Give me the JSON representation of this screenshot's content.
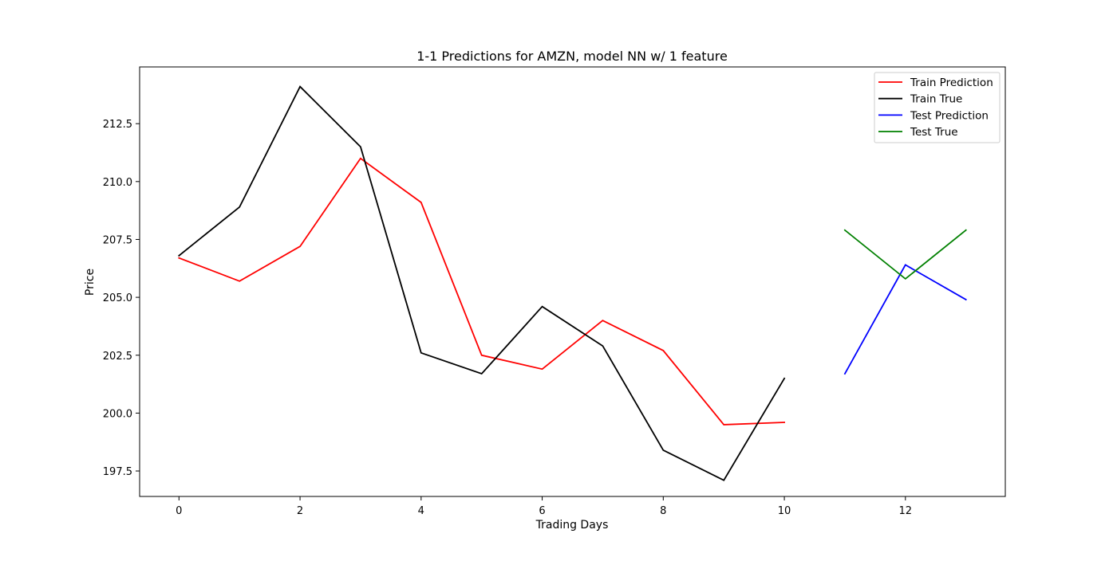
{
  "chart_data": {
    "type": "line",
    "title": "1-1 Predictions for AMZN, model NN w/ 1 feature",
    "xlabel": "Trading Days",
    "ylabel": "Price",
    "xlim": [
      -0.65,
      13.65
    ],
    "ylim": [
      196.4,
      214.95
    ],
    "x_ticks": [
      0,
      2,
      4,
      6,
      8,
      10,
      12
    ],
    "x_tick_labels": [
      "0",
      "2",
      "4",
      "6",
      "8",
      "10",
      "12"
    ],
    "y_ticks": [
      197.5,
      200.0,
      202.5,
      205.0,
      207.5,
      210.0,
      212.5
    ],
    "y_tick_labels": [
      "197.5",
      "200.0",
      "202.5",
      "205.0",
      "207.5",
      "210.0",
      "212.5"
    ],
    "grid": false,
    "legend_position": "top-right",
    "series": [
      {
        "name": "Train Prediction",
        "color": "#ff0000",
        "x": [
          0,
          1,
          2,
          3,
          4,
          5,
          6,
          7,
          8,
          9,
          10
        ],
        "y": [
          206.7,
          205.7,
          207.2,
          211.0,
          209.1,
          202.5,
          201.9,
          204.0,
          202.7,
          199.5,
          199.6
        ]
      },
      {
        "name": "Train True",
        "color": "#000000",
        "x": [
          0,
          1,
          2,
          3,
          4,
          5,
          6,
          7,
          8,
          9,
          10
        ],
        "y": [
          206.8,
          208.9,
          214.1,
          211.5,
          202.6,
          201.7,
          204.6,
          202.9,
          198.4,
          197.1,
          201.5
        ]
      },
      {
        "name": "Test Prediction",
        "color": "#0000ff",
        "x": [
          11,
          12,
          13
        ],
        "y": [
          201.7,
          206.4,
          204.9
        ]
      },
      {
        "name": "Test True",
        "color": "#008000",
        "x": [
          11,
          12,
          13
        ],
        "y": [
          207.9,
          205.8,
          207.9
        ]
      }
    ]
  }
}
